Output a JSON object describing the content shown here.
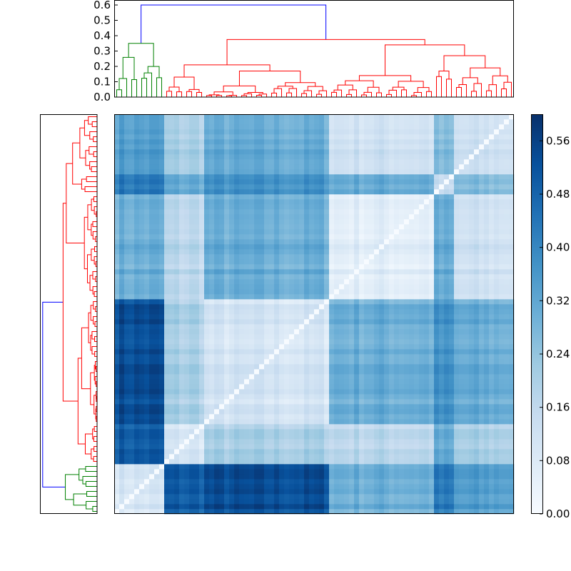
{
  "chart_data": {
    "type": "heatmap",
    "title": "",
    "n_leaves": 80,
    "clusters": [
      {
        "id": "A",
        "size": 10,
        "color": "#008000"
      },
      {
        "id": "B",
        "size": 8,
        "color": "#ff0000"
      },
      {
        "id": "C",
        "size": 25,
        "color": "#ff0000"
      },
      {
        "id": "D",
        "size": 21,
        "color": "#ff0000"
      },
      {
        "id": "E",
        "size": 4,
        "color": "#ff0000"
      },
      {
        "id": "F",
        "size": 12,
        "color": "#ff0000"
      }
    ],
    "block_means": {
      "A": {
        "A": 0.1,
        "B": 0.5,
        "C": 0.53,
        "D": 0.3,
        "E": 0.42,
        "F": 0.34
      },
      "B": {
        "B": 0.1,
        "C": 0.2,
        "D": 0.17,
        "E": 0.3,
        "F": 0.2
      },
      "C": {
        "C": 0.1,
        "D": 0.3,
        "E": 0.36,
        "F": 0.3
      },
      "D": {
        "D": 0.07,
        "E": 0.3,
        "F": 0.12
      },
      "E": {
        "E": 0.12,
        "F": 0.25
      },
      "F": {
        "F": 0.12
      }
    },
    "linkage_tree": {
      "h": 0.6,
      "color": "#0000ff",
      "children": [
        {
          "cluster": "A",
          "h": 0.35
        },
        {
          "h": 0.375,
          "color": "#ff0000",
          "children": [
            {
              "h": 0.21,
              "color": "#ff0000",
              "children": [
                {
                  "cluster": "B",
                  "h": 0.13
                },
                {
                  "cluster": "C",
                  "h": 0.17
                }
              ]
            },
            {
              "h": 0.34,
              "color": "#ff0000",
              "children": [
                {
                  "cluster": "D",
                  "h": 0.14
                },
                {
                  "h": 0.27,
                  "color": "#ff0000",
                  "children": [
                    {
                      "cluster": "E",
                      "h": 0.17
                    },
                    {
                      "cluster": "F",
                      "h": 0.19
                    }
                  ]
                }
              ]
            }
          ]
        }
      ]
    },
    "top_dendrogram": {
      "ylim": [
        0,
        0.6
      ],
      "yticks": [
        "0.0",
        "0.1",
        "0.2",
        "0.3",
        "0.4",
        "0.5",
        "0.6"
      ]
    },
    "colorbar": {
      "colormap": "Blues",
      "vlim": [
        0,
        0.6
      ],
      "ticks": [
        "0.00",
        "0.08",
        "0.16",
        "0.24",
        "0.32",
        "0.40",
        "0.48",
        "0.56"
      ]
    },
    "colors": {
      "low": "#f7fbff",
      "high": "#08306b"
    }
  }
}
